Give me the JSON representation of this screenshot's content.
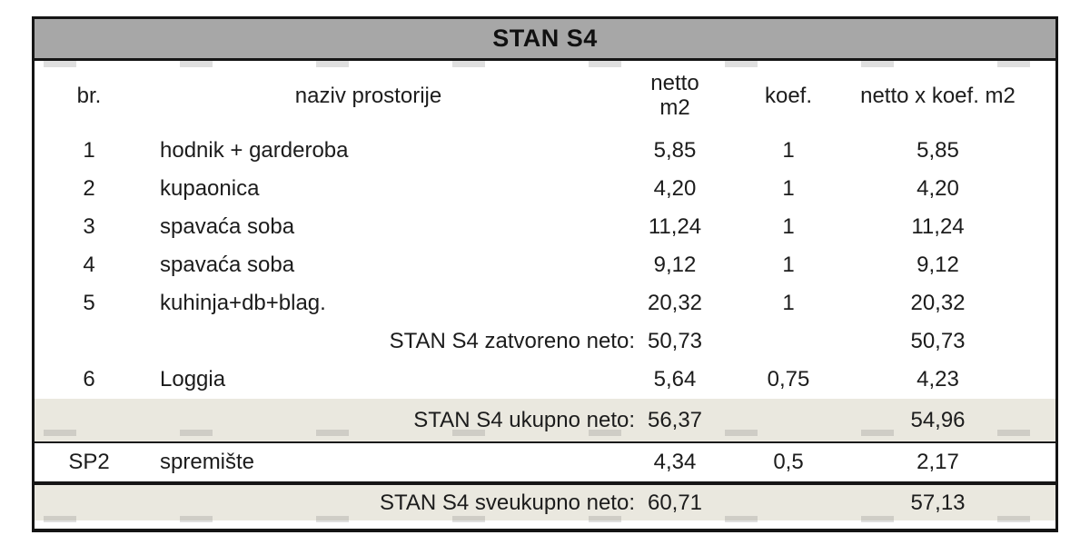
{
  "table": {
    "title": "STAN S4",
    "columns": {
      "br": "br.",
      "name": "naziv prostorije",
      "netto": "netto\nm2",
      "koef": "koef.",
      "netto_x_koef": "netto x koef. m2"
    },
    "rows": [
      {
        "br": "1",
        "name": "hodnik + garderoba",
        "netto": "5,85",
        "koef": "1",
        "total": "5,85"
      },
      {
        "br": "2",
        "name": "kupaonica",
        "netto": "4,20",
        "koef": "1",
        "total": "4,20"
      },
      {
        "br": "3",
        "name": "spavaća soba",
        "netto": "11,24",
        "koef": "1",
        "total": "11,24"
      },
      {
        "br": "4",
        "name": "spavaća soba",
        "netto": "9,12",
        "koef": "1",
        "total": "9,12"
      },
      {
        "br": "5",
        "name": "kuhinja+db+blag.",
        "netto": "20,32",
        "koef": "1",
        "total": "20,32"
      },
      {
        "label": "STAN S4 zatvoreno neto:",
        "netto": "50,73",
        "koef": "",
        "total": "50,73"
      },
      {
        "br": "6",
        "name": "Loggia",
        "netto": "5,64",
        "koef": "0,75",
        "total": "4,23"
      },
      {
        "label": "STAN S4 ukupno neto:",
        "netto": "56,37",
        "koef": "",
        "total": "54,96"
      },
      {
        "br": "SP2",
        "name": "spremište",
        "netto": "4,34",
        "koef": "0,5",
        "total": "2,17"
      },
      {
        "label": "STAN S4 sveukupno neto:",
        "netto": "60,71",
        "koef": "",
        "total": "57,13"
      }
    ],
    "colors": {
      "title_band": "#a7a7a7",
      "highlight_row": "#eae8df",
      "border": "#151515",
      "text": "#1c1c1c"
    }
  }
}
